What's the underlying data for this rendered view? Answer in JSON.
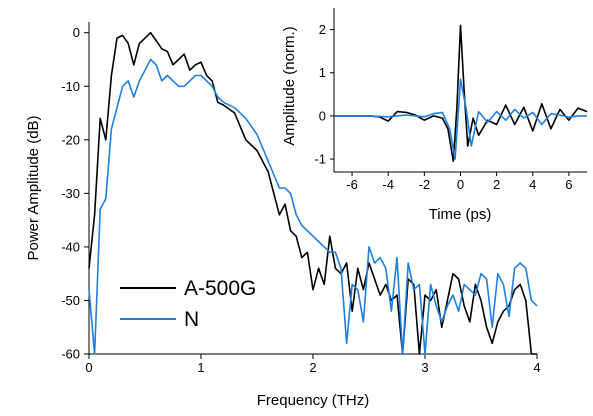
{
  "chart_data": [
    {
      "type": "line",
      "title": "",
      "xlabel": "Frequency (THz)",
      "ylabel": "Power Amplitude (dB)",
      "xlim": [
        0,
        4
      ],
      "ylim": [
        -60,
        2
      ],
      "xticks": [
        0,
        1,
        2,
        3,
        4
      ],
      "yticks": [
        0,
        -10,
        -20,
        -30,
        -40,
        -50,
        -60
      ],
      "xtick_labels": [
        "0",
        "1",
        "2",
        "3",
        "4"
      ],
      "ytick_labels": [
        "0",
        "-10",
        "-20",
        "-30",
        "-40",
        "-50",
        "-60"
      ],
      "grid": false,
      "legend_position": "bottom-left",
      "series": [
        {
          "name": "A-500G",
          "color": "#000000",
          "x": [
            0.0,
            0.05,
            0.1,
            0.15,
            0.2,
            0.25,
            0.3,
            0.35,
            0.4,
            0.45,
            0.5,
            0.55,
            0.6,
            0.65,
            0.7,
            0.75,
            0.8,
            0.85,
            0.9,
            0.95,
            1.0,
            1.05,
            1.1,
            1.15,
            1.2,
            1.3,
            1.4,
            1.5,
            1.6,
            1.7,
            1.75,
            1.8,
            1.85,
            1.9,
            1.95,
            2.0,
            2.05,
            2.1,
            2.15,
            2.2,
            2.25,
            2.3,
            2.35,
            2.4,
            2.45,
            2.5,
            2.55,
            2.6,
            2.65,
            2.7,
            2.75,
            2.8,
            2.85,
            2.9,
            2.95,
            3.0,
            3.05,
            3.1,
            3.15,
            3.2,
            3.25,
            3.3,
            3.35,
            3.4,
            3.45,
            3.5,
            3.55,
            3.6,
            3.65,
            3.7,
            3.75,
            3.8,
            3.85,
            3.9,
            3.95,
            4.0
          ],
          "y": [
            -44,
            -34,
            -16,
            -20,
            -8,
            -1,
            -0.5,
            -2,
            -6,
            -2,
            -1,
            0,
            -1.5,
            -3,
            -3.5,
            -6,
            -5,
            -4,
            -7,
            -6,
            -5.5,
            -8,
            -9,
            -13,
            -13.5,
            -15,
            -20,
            -22,
            -26,
            -34,
            -32,
            -37,
            -38,
            -42,
            -41,
            -48,
            -44,
            -47,
            -38,
            -44,
            -45,
            -43,
            -52,
            -44,
            -48,
            -43,
            -46,
            -49,
            -47,
            -50,
            -49,
            -60,
            -46,
            -47,
            -60,
            -49,
            -50,
            -48,
            -55,
            -50,
            -45,
            -46,
            -51,
            -54,
            -47,
            -50,
            -55,
            -58,
            -54,
            -52,
            -51,
            -48,
            -47,
            -50,
            -60,
            -60
          ]
        },
        {
          "name": "N",
          "color": "#1e7fe0",
          "x": [
            0.0,
            0.05,
            0.1,
            0.15,
            0.2,
            0.25,
            0.3,
            0.35,
            0.4,
            0.45,
            0.5,
            0.55,
            0.6,
            0.65,
            0.7,
            0.75,
            0.8,
            0.85,
            0.9,
            0.95,
            1.0,
            1.05,
            1.1,
            1.15,
            1.2,
            1.3,
            1.4,
            1.5,
            1.6,
            1.7,
            1.75,
            1.8,
            1.85,
            1.9,
            1.95,
            2.0,
            2.05,
            2.1,
            2.15,
            2.2,
            2.25,
            2.3,
            2.35,
            2.4,
            2.45,
            2.5,
            2.55,
            2.6,
            2.65,
            2.7,
            2.75,
            2.8,
            2.85,
            2.9,
            2.95,
            3.0,
            3.05,
            3.1,
            3.15,
            3.2,
            3.25,
            3.3,
            3.35,
            3.4,
            3.45,
            3.5,
            3.55,
            3.6,
            3.65,
            3.7,
            3.75,
            3.8,
            3.85,
            3.9,
            3.95,
            4.0
          ],
          "y": [
            -48,
            -60,
            -33,
            -31,
            -18,
            -14,
            -10,
            -9,
            -12,
            -9,
            -7,
            -5,
            -6,
            -9,
            -8,
            -9,
            -10,
            -10,
            -9,
            -8,
            -8,
            -9,
            -10,
            -12,
            -13,
            -14,
            -16,
            -19,
            -24,
            -29,
            -29,
            -30,
            -34,
            -36,
            -37,
            -38,
            -39,
            -40,
            -41,
            -41,
            -44,
            -58,
            -47,
            -48,
            -54,
            -40,
            -43,
            -42,
            -44,
            -52,
            -42,
            -60,
            -43,
            -48,
            -47,
            -60,
            -47,
            -51,
            -54,
            -51,
            -49,
            -52,
            -47,
            -48,
            -49,
            -45,
            -46,
            -55,
            -45,
            -47,
            -53,
            -44,
            -43,
            -44,
            -50,
            -51
          ]
        }
      ]
    },
    {
      "type": "line",
      "title": "",
      "xlabel": "Time (ps)",
      "ylabel": "Amplitude (norm.)",
      "xlim": [
        -7,
        7
      ],
      "ylim": [
        -1.3,
        2.5
      ],
      "xticks": [
        -6,
        -4,
        -2,
        0,
        2,
        4,
        6
      ],
      "yticks": [
        2,
        1,
        0,
        -1
      ],
      "xtick_labels": [
        "-6",
        "-4",
        "-2",
        "0",
        "2",
        "4",
        "6"
      ],
      "ytick_labels": [
        "2",
        "1",
        "0",
        "-1"
      ],
      "grid": false,
      "series": [
        {
          "color": "#000000",
          "x": [
            -7,
            -6,
            -5,
            -4.5,
            -4,
            -3.5,
            -3,
            -2.5,
            -2,
            -1.5,
            -1,
            -0.7,
            -0.4,
            -0.2,
            0,
            0.2,
            0.4,
            0.7,
            1,
            1.5,
            2,
            2.5,
            3,
            3.5,
            4,
            4.5,
            5,
            5.5,
            6,
            6.5,
            7
          ],
          "y": [
            0,
            0,
            0,
            -0.02,
            -0.12,
            0.1,
            0.08,
            0.02,
            -0.1,
            0.0,
            -0.05,
            -0.3,
            -1.05,
            0.2,
            2.1,
            0.6,
            -0.7,
            -0.05,
            -0.45,
            -0.1,
            -0.2,
            0.25,
            -0.2,
            0.2,
            -0.35,
            0.28,
            -0.3,
            0.15,
            -0.1,
            0.18,
            0.1
          ]
        },
        {
          "color": "#1e7fe0",
          "x": [
            -7,
            -6,
            -5,
            -4,
            -3,
            -2,
            -1.5,
            -1,
            -0.6,
            -0.3,
            0,
            0.3,
            0.6,
            1,
            1.5,
            2,
            2.5,
            3,
            3.5,
            4,
            4.5,
            5,
            5.5,
            6,
            6.5,
            7
          ],
          "y": [
            0,
            0,
            0,
            -0.02,
            0.02,
            -0.02,
            0.05,
            0.08,
            -0.3,
            -1.0,
            0.85,
            0.2,
            -0.7,
            0.1,
            -0.15,
            0.1,
            -0.1,
            0.15,
            -0.05,
            0.08,
            -0.2,
            0.05,
            0.02,
            -0.03,
            0.0,
            0.0
          ]
        }
      ]
    }
  ]
}
